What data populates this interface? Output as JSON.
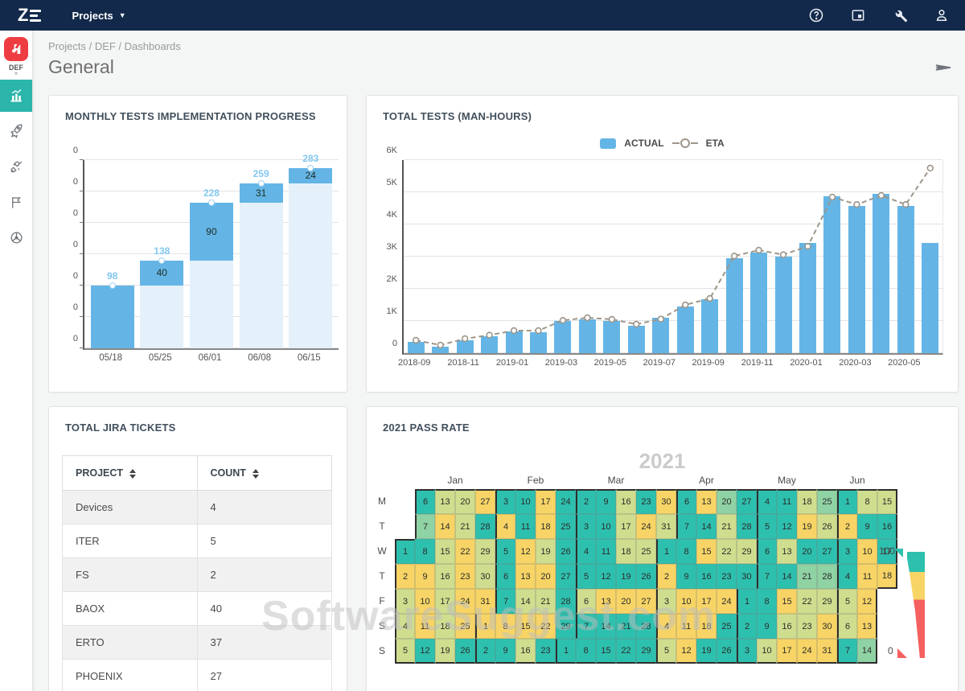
{
  "navbar": {
    "logo_text": "Z",
    "menu_label": "Projects"
  },
  "sidebar": {
    "project_label": "DEF"
  },
  "page": {
    "breadcrumb": [
      "Projects",
      "DEF",
      "Dashboards"
    ],
    "title": "General"
  },
  "watermark": "SoftwareSuggest.com",
  "colors": {
    "navy": "#12294b",
    "active_teal": "#2cb5aa",
    "logo_red": "#ee3d42",
    "bar_blue": "#64b5e6",
    "bar_pale": "#e4f0fa",
    "total_label_blue": "#82c7f0",
    "eta_gray": "#9e9689",
    "hm_teal": "#2ec0ae",
    "hm_green": "#8fd2a4",
    "hm_sage": "#cfdd8e",
    "hm_yellow": "#f7d465",
    "legend_red": "#f56060"
  },
  "chart_data": [
    {
      "id": "monthly_progress",
      "type": "bar",
      "title": "MONTHLY TESTS IMPLEMENTATION PROGRESS",
      "categories": [
        "05/18",
        "05/25",
        "06/01",
        "06/08",
        "06/15"
      ],
      "totals": [
        98,
        138,
        228,
        259,
        283
      ],
      "increments": [
        98,
        40,
        90,
        31,
        24
      ],
      "y_tick_labels": [
        "0",
        "0",
        "0",
        "0",
        "0",
        "0",
        "0"
      ],
      "ymax": 295,
      "ylim": [
        0,
        295
      ],
      "grid": true
    },
    {
      "id": "total_tests_man_hours",
      "type": "bar+line",
      "title": "TOTAL TESTS (MAN-HOURS)",
      "legend": [
        "ACTUAL",
        "ETA"
      ],
      "legend_position": "top-center",
      "x": [
        "2018-09",
        "2018-10",
        "2018-11",
        "2018-12",
        "2019-01",
        "2019-02",
        "2019-03",
        "2019-04",
        "2019-05",
        "2019-06",
        "2019-07",
        "2019-08",
        "2019-09",
        "2019-10",
        "2019-11",
        "2019-12",
        "2020-01",
        "2020-02",
        "2020-03",
        "2020-04",
        "2020-05",
        "2020-06"
      ],
      "x_tick_labels": [
        "2018-09",
        "2018-11",
        "2019-01",
        "2019-03",
        "2019-05",
        "2019-07",
        "2019-09",
        "2019-11",
        "2020-01",
        "2020-03",
        "2020-05"
      ],
      "series": [
        {
          "name": "ACTUAL",
          "values": [
            340,
            200,
            400,
            520,
            670,
            650,
            1000,
            1060,
            1000,
            860,
            1100,
            1450,
            1680,
            2960,
            3130,
            3000,
            3430,
            4880,
            4580,
            4960,
            4580,
            3430
          ]
        },
        {
          "name": "ETA",
          "values": [
            400,
            250,
            450,
            560,
            700,
            700,
            1020,
            1100,
            1050,
            900,
            1060,
            1500,
            1700,
            3020,
            3200,
            3060,
            3320,
            4850,
            4620,
            4900,
            4620,
            5750
          ]
        }
      ],
      "y_tick_labels": [
        "6K",
        "5K",
        "4K",
        "3K",
        "2K",
        "1K",
        "0"
      ],
      "ymax": 6000,
      "ylim": [
        0,
        6000
      ],
      "grid": true
    },
    {
      "id": "pass_rate_calendar",
      "type": "heatmap",
      "title": "2021 PASS RATE",
      "year_label": "2021",
      "months": [
        "Jan",
        "Feb",
        "Mar",
        "Apr",
        "May",
        "Jun"
      ],
      "month_label_cols": [
        3,
        7,
        11,
        15.5,
        19.5,
        23
      ],
      "legend": {
        "top": "100",
        "bottom": "0"
      },
      "rows": [
        {
          "label": "M",
          "start": 1,
          "cells": [
            [
              6,
              "t",
              1
            ],
            [
              13,
              "g",
              0
            ],
            [
              20,
              "g",
              0
            ],
            [
              27,
              "y",
              0
            ],
            [
              3,
              "t",
              1
            ],
            [
              10,
              "t",
              0
            ],
            [
              17,
              "y",
              0
            ],
            [
              24,
              "t",
              0
            ],
            [
              2,
              "t",
              1
            ],
            [
              9,
              "t",
              0
            ],
            [
              16,
              "g",
              0
            ],
            [
              23,
              "t",
              0
            ],
            [
              30,
              "y",
              0
            ],
            [
              6,
              "t",
              1
            ],
            [
              13,
              "y",
              0
            ],
            [
              20,
              "m",
              0
            ],
            [
              27,
              "t",
              0
            ],
            [
              4,
              "t",
              1
            ],
            [
              11,
              "t",
              0
            ],
            [
              18,
              "g",
              0
            ],
            [
              25,
              "m",
              0
            ],
            [
              1,
              "t",
              1
            ],
            [
              8,
              "g",
              0
            ],
            [
              15,
              "g",
              0
            ]
          ]
        },
        {
          "label": "T",
          "start": 1,
          "cells": [
            [
              7,
              "m",
              1
            ],
            [
              14,
              "y",
              0
            ],
            [
              21,
              "g",
              0
            ],
            [
              28,
              "t",
              0
            ],
            [
              4,
              "y",
              1
            ],
            [
              11,
              "t",
              0
            ],
            [
              18,
              "y",
              0
            ],
            [
              25,
              "t",
              0
            ],
            [
              3,
              "t",
              1
            ],
            [
              10,
              "t",
              0
            ],
            [
              17,
              "g",
              0
            ],
            [
              24,
              "y",
              0
            ],
            [
              31,
              "g",
              0
            ],
            [
              7,
              "t",
              1
            ],
            [
              14,
              "t",
              0
            ],
            [
              21,
              "g",
              0
            ],
            [
              28,
              "t",
              0
            ],
            [
              5,
              "t",
              1
            ],
            [
              12,
              "t",
              0
            ],
            [
              19,
              "y",
              0
            ],
            [
              26,
              "g",
              0
            ],
            [
              2,
              "y",
              1
            ],
            [
              9,
              "t",
              0
            ],
            [
              16,
              "t",
              0
            ]
          ]
        },
        {
          "label": "W",
          "start": 0,
          "cells": [
            [
              1,
              "t",
              1
            ],
            [
              8,
              "t",
              0
            ],
            [
              15,
              "g",
              0
            ],
            [
              22,
              "y",
              0
            ],
            [
              29,
              "g",
              0
            ],
            [
              5,
              "t",
              1
            ],
            [
              12,
              "y",
              0
            ],
            [
              19,
              "g",
              0
            ],
            [
              26,
              "t",
              0
            ],
            [
              4,
              "t",
              1
            ],
            [
              11,
              "t",
              0
            ],
            [
              18,
              "g",
              0
            ],
            [
              25,
              "g",
              0
            ],
            [
              1,
              "t",
              1
            ],
            [
              8,
              "t",
              0
            ],
            [
              15,
              "y",
              0
            ],
            [
              22,
              "g",
              0
            ],
            [
              29,
              "g",
              0
            ],
            [
              6,
              "t",
              1
            ],
            [
              13,
              "g",
              0
            ],
            [
              20,
              "t",
              0
            ],
            [
              27,
              "t",
              0
            ],
            [
              3,
              "t",
              1
            ],
            [
              10,
              "y",
              0
            ],
            [
              17,
              "t",
              0
            ]
          ]
        },
        {
          "label": "T",
          "start": 0,
          "cells": [
            [
              2,
              "y",
              1
            ],
            [
              9,
              "y",
              0
            ],
            [
              16,
              "g",
              0
            ],
            [
              23,
              "y",
              0
            ],
            [
              30,
              "g",
              0
            ],
            [
              6,
              "t",
              1
            ],
            [
              13,
              "y",
              0
            ],
            [
              20,
              "y",
              0
            ],
            [
              27,
              "t",
              0
            ],
            [
              5,
              "t",
              1
            ],
            [
              12,
              "t",
              0
            ],
            [
              19,
              "t",
              0
            ],
            [
              26,
              "t",
              0
            ],
            [
              2,
              "y",
              1
            ],
            [
              9,
              "t",
              0
            ],
            [
              16,
              "t",
              0
            ],
            [
              23,
              "t",
              0
            ],
            [
              30,
              "t",
              0
            ],
            [
              7,
              "t",
              1
            ],
            [
              14,
              "t",
              0
            ],
            [
              21,
              "m",
              0
            ],
            [
              28,
              "m",
              0
            ],
            [
              4,
              "t",
              1
            ],
            [
              11,
              "y",
              0
            ],
            [
              18,
              "y",
              0
            ]
          ]
        },
        {
          "label": "F",
          "start": 0,
          "cells": [
            [
              3,
              "g",
              1
            ],
            [
              10,
              "y",
              0
            ],
            [
              17,
              "g",
              0
            ],
            [
              24,
              "y",
              0
            ],
            [
              31,
              "y",
              0
            ],
            [
              7,
              "t",
              1
            ],
            [
              14,
              "g",
              0
            ],
            [
              21,
              "g",
              0
            ],
            [
              28,
              "t",
              0
            ],
            [
              6,
              "g",
              1
            ],
            [
              13,
              "y",
              0
            ],
            [
              20,
              "y",
              0
            ],
            [
              27,
              "y",
              0
            ],
            [
              3,
              "g",
              1
            ],
            [
              10,
              "y",
              0
            ],
            [
              17,
              "y",
              0
            ],
            [
              24,
              "y",
              0
            ],
            [
              1,
              "t",
              1
            ],
            [
              8,
              "t",
              0
            ],
            [
              15,
              "y",
              0
            ],
            [
              22,
              "g",
              0
            ],
            [
              29,
              "g",
              0
            ],
            [
              5,
              "g",
              1
            ],
            [
              12,
              "y",
              0
            ]
          ]
        },
        {
          "label": "S",
          "start": 0,
          "cells": [
            [
              4,
              "g",
              1
            ],
            [
              11,
              "y",
              0
            ],
            [
              18,
              "g",
              0
            ],
            [
              25,
              "y",
              0
            ],
            [
              1,
              "y",
              1
            ],
            [
              8,
              "y",
              0
            ],
            [
              15,
              "y",
              0
            ],
            [
              22,
              "y",
              0
            ],
            [
              29,
              "t",
              0
            ],
            [
              7,
              "t",
              1
            ],
            [
              14,
              "t",
              0
            ],
            [
              21,
              "t",
              0
            ],
            [
              28,
              "t",
              0
            ],
            [
              4,
              "y",
              1
            ],
            [
              11,
              "y",
              0
            ],
            [
              18,
              "y",
              0
            ],
            [
              25,
              "t",
              0
            ],
            [
              2,
              "t",
              1
            ],
            [
              9,
              "t",
              0
            ],
            [
              16,
              "g",
              0
            ],
            [
              23,
              "g",
              0
            ],
            [
              30,
              "y",
              0
            ],
            [
              6,
              "g",
              1
            ],
            [
              13,
              "y",
              0
            ]
          ]
        },
        {
          "label": "S",
          "start": 0,
          "cells": [
            [
              5,
              "g",
              1
            ],
            [
              12,
              "t",
              0
            ],
            [
              19,
              "g",
              0
            ],
            [
              26,
              "t",
              0
            ],
            [
              2,
              "t",
              1
            ],
            [
              9,
              "t",
              0
            ],
            [
              16,
              "g",
              0
            ],
            [
              23,
              "t",
              0
            ],
            [
              1,
              "t",
              1
            ],
            [
              8,
              "t",
              0
            ],
            [
              15,
              "t",
              0
            ],
            [
              22,
              "t",
              0
            ],
            [
              29,
              "t",
              0
            ],
            [
              5,
              "g",
              1
            ],
            [
              12,
              "y",
              0
            ],
            [
              19,
              "t",
              0
            ],
            [
              26,
              "t",
              0
            ],
            [
              3,
              "t",
              1
            ],
            [
              10,
              "g",
              0
            ],
            [
              17,
              "y",
              0
            ],
            [
              24,
              "y",
              0
            ],
            [
              31,
              "y",
              0
            ],
            [
              7,
              "t",
              1
            ],
            [
              14,
              "m",
              0
            ]
          ]
        }
      ]
    }
  ],
  "jira": {
    "title": "TOTAL JIRA TICKETS",
    "columns": [
      "PROJECT",
      "COUNT"
    ],
    "rows": [
      [
        "Devices",
        "4"
      ],
      [
        "ITER",
        "5"
      ],
      [
        "FS",
        "2"
      ],
      [
        "BAOX",
        "40"
      ],
      [
        "ERTO",
        "37"
      ],
      [
        "PHOENIX",
        "27"
      ]
    ]
  }
}
